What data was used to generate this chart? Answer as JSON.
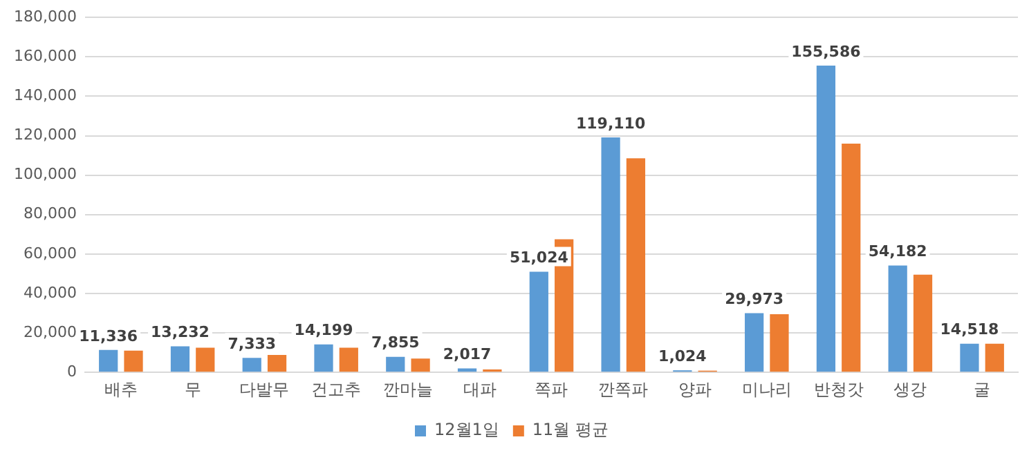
{
  "chart_data": {
    "type": "bar",
    "categories": [
      "배추",
      "무",
      "다발무",
      "건고추",
      "깐마늘",
      "대파",
      "쪽파",
      "깐쪽파",
      "양파",
      "미나리",
      "반청갓",
      "생강",
      "굴"
    ],
    "series": [
      {
        "name": "12월1일",
        "color": "#5b9bd5",
        "values": [
          11336,
          13232,
          7333,
          14199,
          7855,
          2017,
          51024,
          119110,
          1024,
          29973,
          155586,
          54182,
          14518
        ],
        "value_labels": [
          "11,336",
          "13,232",
          "7,333",
          "14,199",
          "7,855",
          "2,017",
          "51,024",
          "119,110",
          "1,024",
          "29,973",
          "155,586",
          "54,182",
          "14,518"
        ]
      },
      {
        "name": "11월 평균",
        "color": "#ed7d31",
        "values": [
          11000,
          12500,
          8800,
          12500,
          7000,
          1500,
          67500,
          108500,
          900,
          29500,
          116000,
          49500,
          14500
        ]
      }
    ],
    "ylim": [
      0,
      180000
    ],
    "yticks": [
      {
        "value": 0,
        "label": "0"
      },
      {
        "value": 20000,
        "label": "20,000"
      },
      {
        "value": 40000,
        "label": "40,000"
      },
      {
        "value": 60000,
        "label": "60,000"
      },
      {
        "value": 80000,
        "label": "80,000"
      },
      {
        "value": 100000,
        "label": "100,000"
      },
      {
        "value": 120000,
        "label": "120,000"
      },
      {
        "value": 140000,
        "label": "140,000"
      },
      {
        "value": 160000,
        "label": "160,000"
      },
      {
        "value": 180000,
        "label": "180,000"
      }
    ],
    "grid": "y",
    "legend": "bottom"
  }
}
